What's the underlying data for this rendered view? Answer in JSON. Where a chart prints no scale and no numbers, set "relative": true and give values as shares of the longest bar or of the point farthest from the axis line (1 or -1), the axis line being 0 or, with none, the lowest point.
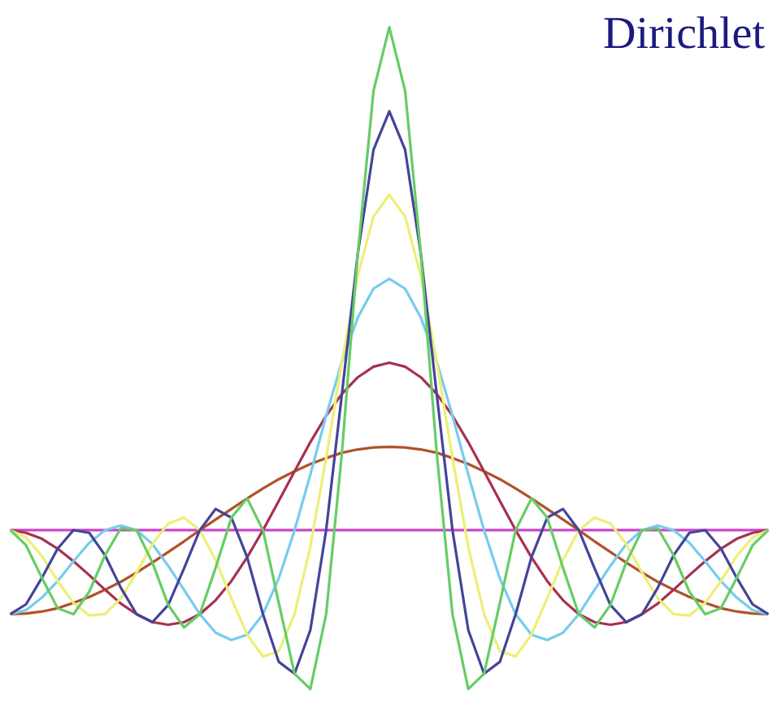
{
  "chart_data": {
    "type": "line",
    "title": "Dirichlet",
    "relative": true,
    "categories": [
      null,
      null,
      null,
      null,
      null,
      null,
      null,
      null,
      null,
      null,
      null,
      null,
      null,
      null,
      null,
      null,
      null,
      null,
      null,
      null,
      null,
      null,
      null,
      null,
      null,
      null,
      null,
      null,
      null,
      null,
      null,
      null,
      null,
      null,
      null,
      null,
      null,
      null,
      null,
      null,
      null,
      null,
      null,
      null,
      null,
      null,
      null,
      null,
      null
    ],
    "series": [
      {
        "color": "#cc44cc",
        "values": [
          0.24,
          0.24,
          0.24,
          0.24,
          0.24,
          0.24,
          0.24,
          0.24,
          0.24,
          0.24,
          0.24,
          0.24,
          0.24,
          0.24,
          0.24,
          0.24,
          0.24,
          0.24,
          0.24,
          0.24,
          0.24,
          0.24,
          0.24,
          0.24,
          0.24,
          0.24,
          0.24,
          0.24,
          0.24,
          0.24,
          0.24,
          0.24,
          0.24,
          0.24,
          0.24,
          0.24,
          0.24,
          0.24,
          0.24,
          0.24,
          0.24,
          0.24,
          0.24,
          0.24,
          0.24,
          0.24,
          0.24,
          0.24,
          0.24
        ]
      },
      {
        "color": "#b0522a",
        "values": [
          0.113,
          0.114,
          0.117,
          0.122,
          0.13,
          0.139,
          0.15,
          0.162,
          0.176,
          0.191,
          0.207,
          0.223,
          0.24,
          0.256,
          0.272,
          0.288,
          0.303,
          0.317,
          0.329,
          0.34,
          0.349,
          0.357,
          0.362,
          0.365,
          0.366,
          0.365,
          0.362,
          0.357,
          0.349,
          0.34,
          0.329,
          0.317,
          0.303,
          0.288,
          0.272,
          0.256,
          0.24,
          0.223,
          0.207,
          0.191,
          0.176,
          0.162,
          0.15,
          0.139,
          0.13,
          0.122,
          0.117,
          0.114,
          0.113
        ]
      },
      {
        "color": "#a83050",
        "values": [
          0.24,
          0.236,
          0.227,
          0.212,
          0.193,
          0.172,
          0.15,
          0.129,
          0.113,
          0.101,
          0.097,
          0.101,
          0.113,
          0.134,
          0.163,
          0.199,
          0.24,
          0.284,
          0.329,
          0.373,
          0.413,
          0.446,
          0.471,
          0.487,
          0.493,
          0.487,
          0.471,
          0.446,
          0.413,
          0.373,
          0.329,
          0.284,
          0.24,
          0.199,
          0.163,
          0.134,
          0.113,
          0.101,
          0.097,
          0.101,
          0.113,
          0.129,
          0.15,
          0.172,
          0.193,
          0.212,
          0.227,
          0.236,
          0.24
        ]
      },
      {
        "color": "#77ccee",
        "values": [
          0.113,
          0.119,
          0.138,
          0.163,
          0.193,
          0.221,
          0.24,
          0.247,
          0.24,
          0.219,
          0.186,
          0.15,
          0.113,
          0.085,
          0.074,
          0.082,
          0.113,
          0.167,
          0.24,
          0.324,
          0.413,
          0.495,
          0.561,
          0.605,
          0.62,
          0.605,
          0.561,
          0.495,
          0.413,
          0.324,
          0.24,
          0.167,
          0.113,
          0.082,
          0.074,
          0.085,
          0.113,
          0.15,
          0.186,
          0.219,
          0.24,
          0.247,
          0.24,
          0.221,
          0.193,
          0.163,
          0.138,
          0.119,
          0.113
        ]
      },
      {
        "color": "#eeee77",
        "values": [
          0.24,
          0.229,
          0.201,
          0.163,
          0.13,
          0.111,
          0.113,
          0.137,
          0.176,
          0.219,
          0.25,
          0.259,
          0.24,
          0.195,
          0.137,
          0.082,
          0.049,
          0.057,
          0.113,
          0.215,
          0.349,
          0.495,
          0.624,
          0.714,
          0.747,
          0.714,
          0.624,
          0.495,
          0.349,
          0.215,
          0.113,
          0.057,
          0.049,
          0.082,
          0.137,
          0.195,
          0.24,
          0.259,
          0.25,
          0.219,
          0.176,
          0.137,
          0.113,
          0.111,
          0.13,
          0.163,
          0.201,
          0.229,
          0.24
        ]
      },
      {
        "color": "#444499",
        "values": [
          0.113,
          0.128,
          0.168,
          0.212,
          0.24,
          0.236,
          0.202,
          0.153,
          0.113,
          0.101,
          0.127,
          0.182,
          0.24,
          0.272,
          0.259,
          0.199,
          0.113,
          0.041,
          0.023,
          0.089,
          0.24,
          0.446,
          0.657,
          0.815,
          0.873,
          0.815,
          0.657,
          0.446,
          0.24,
          0.089,
          0.023,
          0.041,
          0.113,
          0.199,
          0.259,
          0.272,
          0.24,
          0.182,
          0.127,
          0.101,
          0.113,
          0.153,
          0.202,
          0.236,
          0.24,
          0.212,
          0.168,
          0.128,
          0.113
        ]
      },
      {
        "color": "#66cc66",
        "values": [
          0.24,
          0.217,
          0.168,
          0.122,
          0.113,
          0.147,
          0.202,
          0.243,
          0.24,
          0.191,
          0.127,
          0.093,
          0.113,
          0.183,
          0.259,
          0.288,
          0.24,
          0.13,
          0.023,
          0,
          0.113,
          0.357,
          0.657,
          0.904,
          1,
          0.904,
          0.657,
          0.357,
          0.113,
          0,
          0.023,
          0.13,
          0.24,
          0.288,
          0.259,
          0.183,
          0.113,
          0.093,
          0.127,
          0.191,
          0.24,
          0.243,
          0.202,
          0.147,
          0.113,
          0.122,
          0.168,
          0.217,
          0.24
        ]
      }
    ]
  }
}
